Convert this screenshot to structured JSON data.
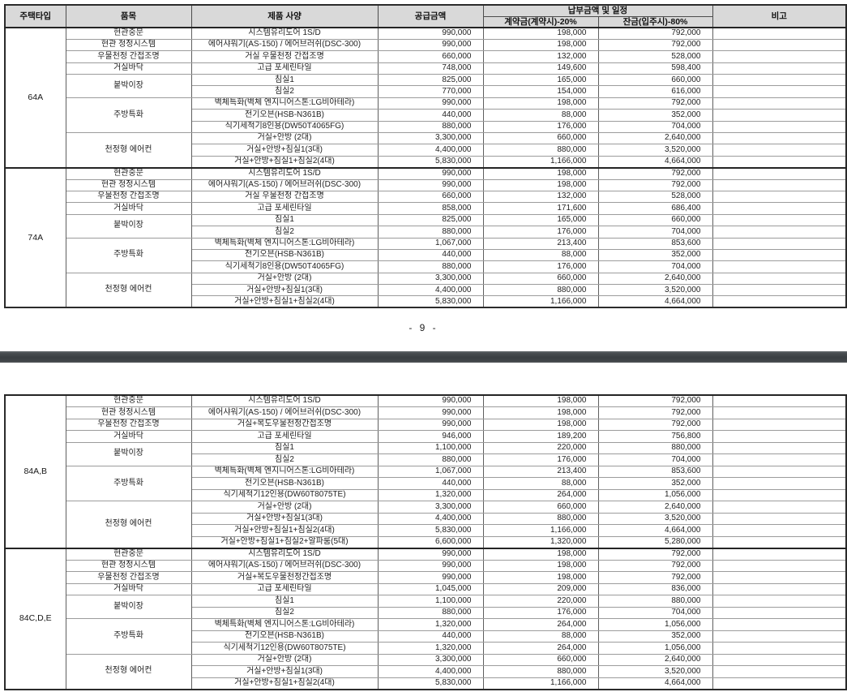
{
  "colors": {
    "header_background": "#d9d9d9",
    "table_border": "#2b2b2b",
    "page_separator_bar": "#3d4245",
    "page_background": "#ffffff"
  },
  "page_number": "- 9 -",
  "header": {
    "housing_type": "주택타입",
    "item": "품목",
    "spec": "제품 사양",
    "supply": "공급금액",
    "payment_group": "납부금액 및 일정",
    "down_payment": "계약금(계약시)-20%",
    "balance": "잔금(입주시)-80%",
    "remark": "비고"
  },
  "tables": [
    {
      "has_header": true,
      "sections": [
        {
          "type": "64A",
          "groups": [
            {
              "item": "현관중문",
              "rows": [
                {
                  "spec": "시스템유리도어 1S/D",
                  "supply": "990,000",
                  "down": "198,000",
                  "balance": "792,000"
                }
              ]
            },
            {
              "item": "현관 청정시스템",
              "rows": [
                {
                  "spec": "에어샤워기(AS-150) / 에어브러쉬(DSC-300)",
                  "supply": "990,000",
                  "down": "198,000",
                  "balance": "792,000"
                }
              ]
            },
            {
              "item": "우물천정 간접조명",
              "rows": [
                {
                  "spec": "거실 우물천정 간접조명",
                  "supply": "660,000",
                  "down": "132,000",
                  "balance": "528,000"
                }
              ]
            },
            {
              "item": "거실바닥",
              "rows": [
                {
                  "spec": "고급 포세린타일",
                  "supply": "748,000",
                  "down": "149,600",
                  "balance": "598,400"
                }
              ]
            },
            {
              "item": "붙박이장",
              "rows": [
                {
                  "spec": "침실1",
                  "supply": "825,000",
                  "down": "165,000",
                  "balance": "660,000"
                },
                {
                  "spec": "침실2",
                  "supply": "770,000",
                  "down": "154,000",
                  "balance": "616,000"
                }
              ]
            },
            {
              "item": "주방특화",
              "rows": [
                {
                  "spec": "벽체특화(벽체 엔지니어스톤:LG비아테라)",
                  "supply": "990,000",
                  "down": "198,000",
                  "balance": "792,000"
                },
                {
                  "spec": "전기오븐(HSB-N361B)",
                  "supply": "440,000",
                  "down": "88,000",
                  "balance": "352,000"
                },
                {
                  "spec": "식기세척기8인용(DW50T4065FG)",
                  "supply": "880,000",
                  "down": "176,000",
                  "balance": "704,000"
                }
              ]
            },
            {
              "item": "천정형 에어컨",
              "rows": [
                {
                  "spec": "거실+안방 (2대)",
                  "supply": "3,300,000",
                  "down": "660,000",
                  "balance": "2,640,000"
                },
                {
                  "spec": "거실+안방+침실1(3대)",
                  "supply": "4,400,000",
                  "down": "880,000",
                  "balance": "3,520,000"
                },
                {
                  "spec": "거실+안방+침실1+침실2(4대)",
                  "supply": "5,830,000",
                  "down": "1,166,000",
                  "balance": "4,664,000"
                }
              ]
            }
          ]
        },
        {
          "type": "74A",
          "groups": [
            {
              "item": "현관중문",
              "rows": [
                {
                  "spec": "시스템유리도어 1S/D",
                  "supply": "990,000",
                  "down": "198,000",
                  "balance": "792,000"
                }
              ]
            },
            {
              "item": "현관 청정시스템",
              "rows": [
                {
                  "spec": "에어샤워기(AS-150) / 에어브러쉬(DSC-300)",
                  "supply": "990,000",
                  "down": "198,000",
                  "balance": "792,000"
                }
              ]
            },
            {
              "item": "우물천정 간접조명",
              "rows": [
                {
                  "spec": "거실 우물천정 간접조명",
                  "supply": "660,000",
                  "down": "132,000",
                  "balance": "528,000"
                }
              ]
            },
            {
              "item": "거실바닥",
              "rows": [
                {
                  "spec": "고급 포세린타일",
                  "supply": "858,000",
                  "down": "171,600",
                  "balance": "686,400"
                }
              ]
            },
            {
              "item": "붙박이장",
              "rows": [
                {
                  "spec": "침실1",
                  "supply": "825,000",
                  "down": "165,000",
                  "balance": "660,000"
                },
                {
                  "spec": "침실2",
                  "supply": "880,000",
                  "down": "176,000",
                  "balance": "704,000"
                }
              ]
            },
            {
              "item": "주방특화",
              "rows": [
                {
                  "spec": "벽체특화(벽체 엔지니어스톤:LG비아테라)",
                  "supply": "1,067,000",
                  "down": "213,400",
                  "balance": "853,600"
                },
                {
                  "spec": "전기오븐(HSB-N361B)",
                  "supply": "440,000",
                  "down": "88,000",
                  "balance": "352,000"
                },
                {
                  "spec": "식기세척기8인용(DW50T4065FG)",
                  "supply": "880,000",
                  "down": "176,000",
                  "balance": "704,000"
                }
              ]
            },
            {
              "item": "천정형 에어컨",
              "rows": [
                {
                  "spec": "거실+안방 (2대)",
                  "supply": "3,300,000",
                  "down": "660,000",
                  "balance": "2,640,000"
                },
                {
                  "spec": "거실+안방+침실1(3대)",
                  "supply": "4,400,000",
                  "down": "880,000",
                  "balance": "3,520,000"
                },
                {
                  "spec": "거실+안방+침실1+침실2(4대)",
                  "supply": "5,830,000",
                  "down": "1,166,000",
                  "balance": "4,664,000"
                }
              ]
            }
          ]
        }
      ]
    },
    {
      "has_header": false,
      "sections": [
        {
          "type": "84A,B",
          "groups": [
            {
              "item": "현관중문",
              "rows": [
                {
                  "spec": "시스템유리도어 1S/D",
                  "supply": "990,000",
                  "down": "198,000",
                  "balance": "792,000"
                }
              ]
            },
            {
              "item": "현관 청정시스템",
              "rows": [
                {
                  "spec": "에어샤워기(AS-150) / 에어브러쉬(DSC-300)",
                  "supply": "990,000",
                  "down": "198,000",
                  "balance": "792,000"
                }
              ]
            },
            {
              "item": "우물천정 간접조명",
              "rows": [
                {
                  "spec": "거실+복도우물천정간접조명",
                  "supply": "990,000",
                  "down": "198,000",
                  "balance": "792,000"
                }
              ]
            },
            {
              "item": "거실바닥",
              "rows": [
                {
                  "spec": "고급 포세린타일",
                  "supply": "946,000",
                  "down": "189,200",
                  "balance": "756,800"
                }
              ]
            },
            {
              "item": "붙박이장",
              "rows": [
                {
                  "spec": "침실1",
                  "supply": "1,100,000",
                  "down": "220,000",
                  "balance": "880,000"
                },
                {
                  "spec": "침실2",
                  "supply": "880,000",
                  "down": "176,000",
                  "balance": "704,000"
                }
              ]
            },
            {
              "item": "주방특화",
              "rows": [
                {
                  "spec": "벽체특화(벽체 엔지니어스톤:LG비아테라)",
                  "supply": "1,067,000",
                  "down": "213,400",
                  "balance": "853,600"
                },
                {
                  "spec": "전기오븐(HSB-N361B)",
                  "supply": "440,000",
                  "down": "88,000",
                  "balance": "352,000"
                },
                {
                  "spec": "식기세척기12인용(DW60T8075TE)",
                  "supply": "1,320,000",
                  "down": "264,000",
                  "balance": "1,056,000"
                }
              ]
            },
            {
              "item": "천정형 에어컨",
              "rows": [
                {
                  "spec": "거실+안방 (2대)",
                  "supply": "3,300,000",
                  "down": "660,000",
                  "balance": "2,640,000"
                },
                {
                  "spec": "거실+안방+침실1(3대)",
                  "supply": "4,400,000",
                  "down": "880,000",
                  "balance": "3,520,000"
                },
                {
                  "spec": "거실+안방+침실1+침실2(4대)",
                  "supply": "5,830,000",
                  "down": "1,166,000",
                  "balance": "4,664,000"
                },
                {
                  "spec": "거실+안방+침실1+침실2+알파룸(5대)",
                  "supply": "6,600,000",
                  "down": "1,320,000",
                  "balance": "5,280,000"
                }
              ]
            }
          ]
        },
        {
          "type": "84C,D,E",
          "groups": [
            {
              "item": "현관중문",
              "rows": [
                {
                  "spec": "시스템유리도어 1S/D",
                  "supply": "990,000",
                  "down": "198,000",
                  "balance": "792,000"
                }
              ]
            },
            {
              "item": "현관 청정시스템",
              "rows": [
                {
                  "spec": "에어샤워기(AS-150) / 에어브러쉬(DSC-300)",
                  "supply": "990,000",
                  "down": "198,000",
                  "balance": "792,000"
                }
              ]
            },
            {
              "item": "우물천정 간접조명",
              "rows": [
                {
                  "spec": "거실+복도우물천정간접조명",
                  "supply": "990,000",
                  "down": "198,000",
                  "balance": "792,000"
                }
              ]
            },
            {
              "item": "거실바닥",
              "rows": [
                {
                  "spec": "고급 포세린타일",
                  "supply": "1,045,000",
                  "down": "209,000",
                  "balance": "836,000"
                }
              ]
            },
            {
              "item": "붙박이장",
              "rows": [
                {
                  "spec": "침실1",
                  "supply": "1,100,000",
                  "down": "220,000",
                  "balance": "880,000"
                },
                {
                  "spec": "침실2",
                  "supply": "880,000",
                  "down": "176,000",
                  "balance": "704,000"
                }
              ]
            },
            {
              "item": "주방특화",
              "rows": [
                {
                  "spec": "벽체특화(벽체 엔지니어스톤:LG비아테라)",
                  "supply": "1,320,000",
                  "down": "264,000",
                  "balance": "1,056,000"
                },
                {
                  "spec": "전기오븐(HSB-N361B)",
                  "supply": "440,000",
                  "down": "88,000",
                  "balance": "352,000"
                },
                {
                  "spec": "식기세척기12인용(DW60T8075TE)",
                  "supply": "1,320,000",
                  "down": "264,000",
                  "balance": "1,056,000"
                }
              ]
            },
            {
              "item": "천정형 에어컨",
              "rows": [
                {
                  "spec": "거실+안방 (2대)",
                  "supply": "3,300,000",
                  "down": "660,000",
                  "balance": "2,640,000"
                },
                {
                  "spec": "거실+안방+침실1(3대)",
                  "supply": "4,400,000",
                  "down": "880,000",
                  "balance": "3,520,000"
                },
                {
                  "spec": "거실+안방+침실1+침실2(4대)",
                  "supply": "5,830,000",
                  "down": "1,166,000",
                  "balance": "4,664,000"
                }
              ]
            }
          ]
        }
      ]
    }
  ]
}
